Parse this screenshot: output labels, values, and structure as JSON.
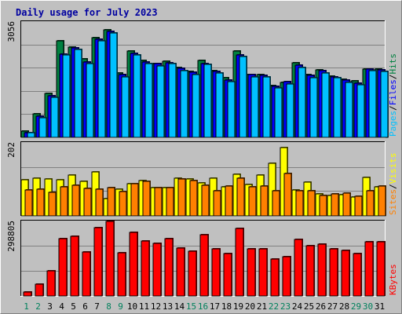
{
  "chart_data": {
    "type": "bar",
    "title": "Daily usage for July 2023",
    "categories": [
      "1",
      "2",
      "3",
      "4",
      "5",
      "6",
      "7",
      "8",
      "9",
      "10",
      "11",
      "12",
      "13",
      "14",
      "15",
      "16",
      "17",
      "18",
      "19",
      "20",
      "21",
      "22",
      "23",
      "24",
      "25",
      "26",
      "27",
      "28",
      "29",
      "30",
      "31"
    ],
    "weekend_days": [
      "1",
      "2",
      "8",
      "9",
      "15",
      "16",
      "22",
      "23",
      "29",
      "30"
    ],
    "panels": [
      {
        "id": "hits-files-pages",
        "ymax": 3056,
        "ymax_label": "3056",
        "right_labels": [
          "Pages",
          "Files",
          "Hits"
        ],
        "series": [
          {
            "name": "Hits",
            "color": "#008040",
            "values": [
              170,
              615,
              1155,
              2565,
              2400,
              2080,
              2640,
              2855,
              1705,
              2285,
              2040,
              1945,
              2025,
              1860,
              1750,
              2030,
              1760,
              1570,
              2295,
              1660,
              1665,
              1375,
              1445,
              1985,
              1670,
              1780,
              1630,
              1540,
              1500,
              1800,
              1800
            ]
          },
          {
            "name": "Files",
            "color": "#0000FF",
            "values": [
              135,
              555,
              1100,
              2200,
              2365,
              1995,
              2590,
              2805,
              1665,
              2225,
              2000,
              1945,
              1980,
              1820,
              1735,
              1955,
              1745,
              1520,
              2185,
              1655,
              1635,
              1345,
              1470,
              1905,
              1650,
              1760,
              1605,
              1525,
              1430,
              1810,
              1790
            ]
          },
          {
            "name": "Pages",
            "color": "#00C0FF",
            "values": [
              120,
              520,
              1060,
              2180,
              2330,
              1945,
              2550,
              2765,
              1610,
              2190,
              1960,
              1890,
              1955,
              1765,
              1655,
              1930,
              1695,
              1470,
              2145,
              1600,
              1600,
              1310,
              1420,
              1845,
              1580,
              1710,
              1570,
              1460,
              1390,
              1760,
              1750
            ]
          }
        ]
      },
      {
        "id": "visits-sites",
        "ymax": 202,
        "ymax_label": "202",
        "right_labels": [
          "Sites",
          "Visits"
        ],
        "series": [
          {
            "name": "Visits",
            "color": "#FFFF00",
            "values": [
              100,
              105,
              103,
              100,
              112,
              96,
              122,
              48,
              73,
              88,
              98,
              78,
              78,
              105,
              103,
              92,
              104,
              80,
              116,
              86,
              112,
              146,
              190,
              72,
              94,
              60,
              57,
              58,
              53,
              106,
              80
            ]
          },
          {
            "name": "Sites",
            "color": "#FF8000",
            "values": [
              72,
              74,
              65,
              80,
              84,
              76,
              74,
              78,
              68,
              90,
              96,
              78,
              78,
              102,
              97,
              84,
              70,
              82,
              104,
              80,
              82,
              70,
              118,
              70,
              70,
              56,
              60,
              64,
              54,
              70,
              82
            ]
          }
        ]
      },
      {
        "id": "kbytes",
        "ymax": 298805,
        "ymax_label": "298805",
        "right_labels": [
          "KBytes"
        ],
        "series": [
          {
            "name": "KBytes",
            "color": "#FF0000",
            "values": [
              15000,
              48000,
              102000,
              230000,
              240000,
              177000,
              275000,
              298805,
              172000,
              255000,
              220000,
              212000,
              230000,
              192000,
              178000,
              245000,
              188000,
              170000,
              270000,
              188000,
              188000,
              148000,
              157000,
              225000,
              200000,
              208000,
              190000,
              182000,
              170000,
              217000,
              217000
            ]
          }
        ]
      }
    ]
  }
}
